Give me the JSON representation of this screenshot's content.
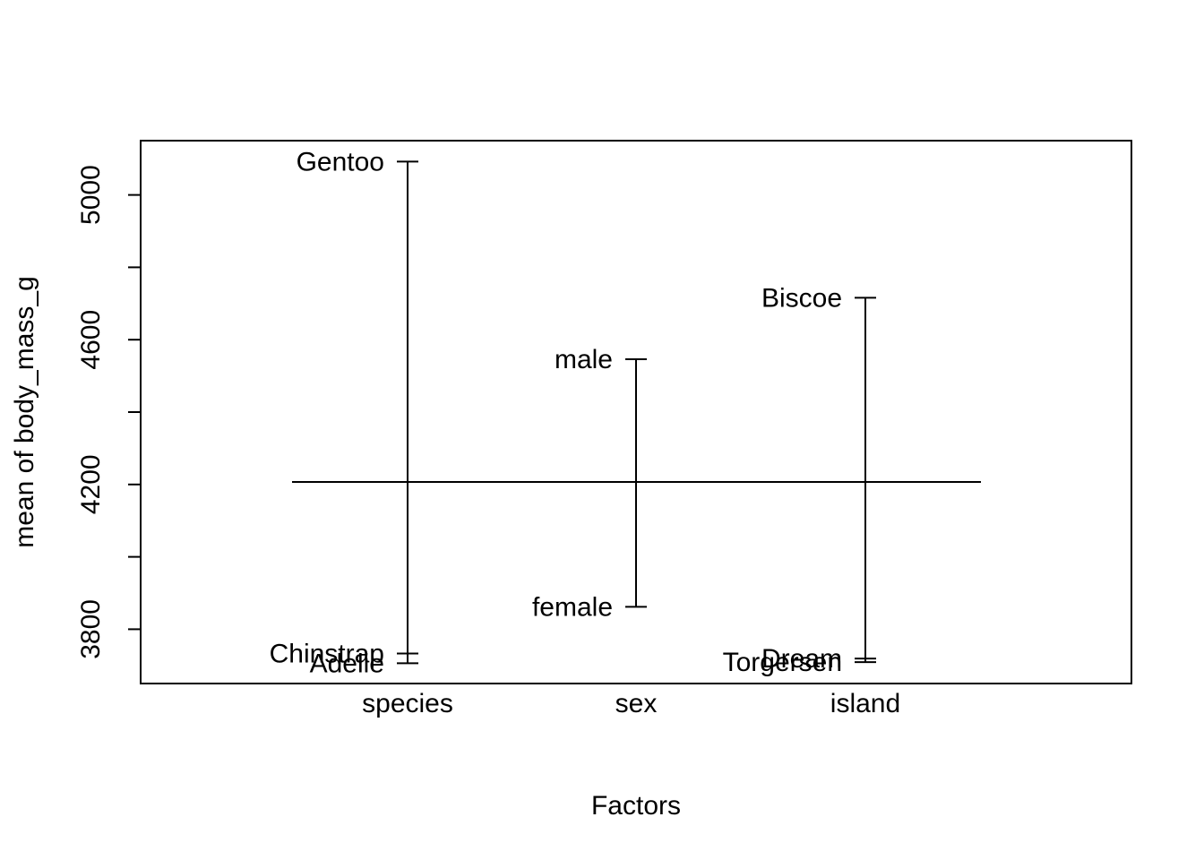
{
  "chart_data": {
    "type": "design_plot",
    "title": "",
    "xlabel": "Factors",
    "ylabel": "mean of body_mass_g",
    "ylim": [
      3650,
      5150
    ],
    "yticks": [
      3800,
      4000,
      4200,
      4400,
      4600,
      4800,
      5000
    ],
    "ytick_labels": [
      "3800",
      "",
      "4200",
      "",
      "4600",
      "",
      "5000"
    ],
    "grand_mean": 4207,
    "factors": [
      {
        "name": "species",
        "levels": [
          {
            "label": "Adelie",
            "mean": 3706
          },
          {
            "label": "Chinstrap",
            "mean": 3733
          },
          {
            "label": "Gentoo",
            "mean": 5092
          }
        ]
      },
      {
        "name": "sex",
        "levels": [
          {
            "label": "female",
            "mean": 3862
          },
          {
            "label": "male",
            "mean": 4546
          }
        ]
      },
      {
        "name": "island",
        "levels": [
          {
            "label": "Torgersen",
            "mean": 3709
          },
          {
            "label": "Dream",
            "mean": 3719
          },
          {
            "label": "Biscoe",
            "mean": 4716
          }
        ]
      }
    ]
  }
}
